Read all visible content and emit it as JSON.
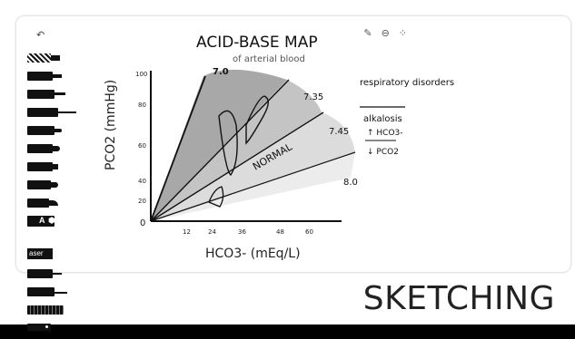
{
  "toolbar": {
    "undo_icon": "undo-icon",
    "tool_label_a": "A",
    "tool_label_eraser": "aser"
  },
  "top_icons": {
    "pen_icon": "pen-icon",
    "more_icon": "more-icon",
    "grid_icon": "grid-icon"
  },
  "sketch": {
    "title": "ACID-BASE MAP",
    "subtitle": "of arterial blood",
    "y_axis_label": "PCO2 (mmHg)",
    "x_axis_label": "HCO3- (mEq/L)",
    "y_ticks": [
      "100",
      "80",
      "60",
      "40",
      "20",
      "0"
    ],
    "x_ticks": [
      "12",
      "24",
      "36",
      "48",
      "60"
    ],
    "ph_labels": [
      "7.0",
      "7.35",
      "7.45",
      "8.0"
    ],
    "region_label": "NORMAL",
    "note_title": "respiratory disorders",
    "note_line1": "alkalosis",
    "note_line2": "↑ HCO3-",
    "note_line3": "↓ PCO2"
  },
  "caption": {
    "text": "SKETCHING"
  },
  "colors": {
    "page_bg": "#ffffff",
    "ink": "#111111",
    "zone_dark": "#a8a8a8",
    "zone_mid": "#c4c4c4",
    "zone_light": "#dddddd",
    "zone_faint": "#ececec"
  }
}
